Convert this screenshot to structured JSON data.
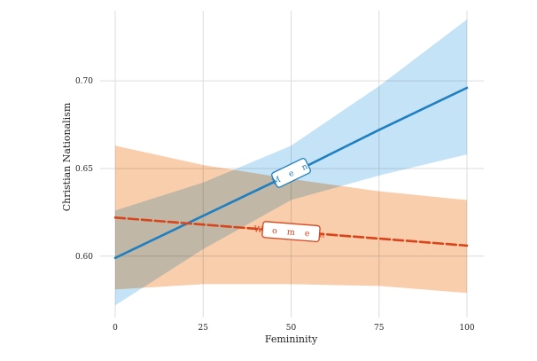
{
  "chart_data": {
    "type": "line",
    "title": "",
    "xlabel": "Femininity",
    "ylabel": "Christian Nationalism",
    "xlim": [
      0,
      100
    ],
    "ylim": [
      0.565,
      0.74
    ],
    "x_ticks": [
      0,
      25,
      50,
      75,
      100
    ],
    "x_tick_labels": [
      "0",
      "25",
      "50",
      "75",
      "100"
    ],
    "y_ticks": [
      0.6,
      0.65,
      0.7
    ],
    "y_tick_labels": [
      "0.60",
      "0.65",
      "0.70"
    ],
    "grid": true,
    "legend": "inline labels on lines",
    "series": [
      {
        "name": "Men",
        "label": "M e n",
        "color": "#1f7fc0",
        "band_color": "#bfe0f7",
        "line_style": "solid",
        "label_at_x": 50,
        "x": [
          0,
          25,
          50,
          75,
          100
        ],
        "y": [
          0.599,
          0.623,
          0.647,
          0.672,
          0.696
        ],
        "ci_lower": [
          0.572,
          0.604,
          0.632,
          0.646,
          0.658
        ],
        "ci_upper": [
          0.626,
          0.642,
          0.663,
          0.697,
          0.735
        ]
      },
      {
        "name": "Women",
        "label": "W o m e n",
        "color": "#d9441a",
        "band_color": "#f9c9a3",
        "line_style": "dashed",
        "label_at_x": 50,
        "x": [
          0,
          25,
          50,
          75,
          100
        ],
        "y": [
          0.622,
          0.618,
          0.614,
          0.61,
          0.606
        ],
        "ci_lower": [
          0.581,
          0.584,
          0.584,
          0.583,
          0.579
        ],
        "ci_upper": [
          0.663,
          0.652,
          0.644,
          0.637,
          0.632
        ]
      }
    ]
  }
}
